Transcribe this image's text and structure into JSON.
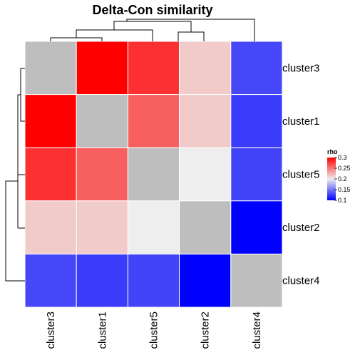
{
  "chart_data": {
    "type": "heatmap",
    "title": "Delta-Con similarity",
    "rows": [
      "cluster3",
      "cluster1",
      "cluster5",
      "cluster2",
      "cluster4"
    ],
    "columns": [
      "cluster3",
      "cluster1",
      "cluster5",
      "cluster2",
      "cluster4"
    ],
    "values": [
      [
        null,
        0.3,
        0.28,
        0.215,
        0.13
      ],
      [
        0.3,
        null,
        0.26,
        0.215,
        0.125
      ],
      [
        0.28,
        0.26,
        null,
        0.2,
        0.128
      ],
      [
        0.215,
        0.215,
        0.2,
        null,
        0.1
      ],
      [
        0.13,
        0.125,
        0.128,
        0.1,
        null
      ]
    ],
    "diagonal_color": "#BEBEBE",
    "color_scale": {
      "stops": [
        {
          "value": 0.1,
          "color": "#0000FF"
        },
        {
          "value": 0.2,
          "color": "#EEEEEE"
        },
        {
          "value": 0.3,
          "color": "#FF0000"
        }
      ]
    },
    "legend": {
      "title": "rho",
      "ticks": [
        "0.3",
        "0.25",
        "0.2",
        "0.15",
        "0.1"
      ],
      "tick_values": [
        0.3,
        0.25,
        0.2,
        0.15,
        0.1
      ],
      "range": [
        0.1,
        0.3
      ],
      "position": "right"
    },
    "row_dendrogram": "left",
    "column_dendrogram": "top"
  }
}
